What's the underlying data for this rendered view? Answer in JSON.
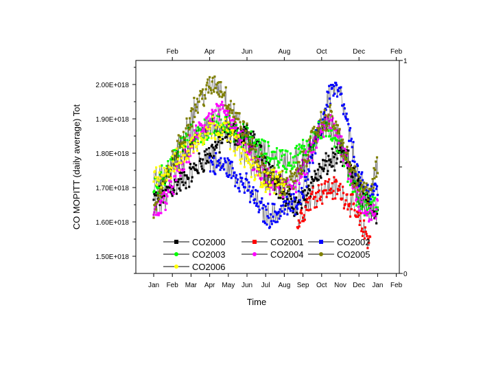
{
  "chart_data": {
    "type": "line",
    "title": "",
    "xlabel": "Time",
    "ylabel": "CO  MOPITT (daily average) Tot",
    "ylim": [
      1.45e+18,
      2.07e+18
    ],
    "y_ticks": [
      "1.50E+018",
      "1.60E+018",
      "1.70E+018",
      "1.80E+018",
      "1.90E+018",
      "2.00E+018"
    ],
    "y_tick_values": [
      1.5e+18,
      1.6e+18,
      1.7e+18,
      1.8e+18,
      1.9e+18,
      2e+18
    ],
    "x_ticks_bottom": [
      "Jan",
      "Feb",
      "Mar",
      "Apr",
      "May",
      "Jun",
      "Jul",
      "Aug",
      "Sep",
      "Oct",
      "Nov",
      "Dec",
      "Jan",
      "Feb"
    ],
    "x_ticks_top": [
      "Feb",
      "Apr",
      "Jun",
      "Aug",
      "Oct",
      "Dec",
      "Feb"
    ],
    "y_ticks_right": [
      "0",
      "1"
    ],
    "grid": false,
    "legend_position": "bottom-inside",
    "x_unit": "month (0 = Jan 1)",
    "series": [
      {
        "name": "CO2000",
        "color": "#000000",
        "marker": "square",
        "x": [
          0.0,
          1.0,
          2.0,
          3.0,
          4.0,
          5.0,
          6.0,
          7.0,
          7.8,
          8.5,
          9.0,
          9.5,
          10.0,
          10.5,
          11.0,
          11.5,
          12.0
        ],
        "y": [
          1.66e+18,
          1.7e+18,
          1.74e+18,
          1.8e+18,
          1.86e+18,
          1.85e+18,
          1.78e+18,
          1.67e+18,
          1.64e+18,
          1.72e+18,
          1.75e+18,
          1.78e+18,
          1.79e+18,
          1.77e+18,
          1.7e+18,
          1.64e+18,
          1.63e+18
        ]
      },
      {
        "name": "CO2001",
        "color": "#ff0000",
        "marker": "square",
        "x": [
          7.7,
          8.0,
          8.3,
          8.6,
          9.0,
          9.5,
          10.0,
          10.5,
          11.0,
          11.3,
          11.6
        ],
        "y": [
          1.59e+18,
          1.63e+18,
          1.66e+18,
          1.68e+18,
          1.69e+18,
          1.7e+18,
          1.69e+18,
          1.66e+18,
          1.6e+18,
          1.57e+18,
          1.55e+18
        ]
      },
      {
        "name": "CO2002",
        "color": "#0000ff",
        "marker": "square",
        "x": [
          3.0,
          4.0,
          4.5,
          5.0,
          5.5,
          6.0,
          6.5,
          7.0,
          7.5,
          8.0,
          8.5,
          9.0,
          9.3,
          9.6,
          10.0,
          10.3,
          10.7,
          11.0,
          11.5,
          12.0
        ],
        "y": [
          1.77e+18,
          1.76e+18,
          1.73e+18,
          1.7e+18,
          1.66e+18,
          1.62e+18,
          1.62e+18,
          1.64e+18,
          1.65e+18,
          1.7e+18,
          1.8e+18,
          1.88e+18,
          1.96e+18,
          1.99e+18,
          1.97e+18,
          1.9e+18,
          1.8e+18,
          1.72e+18,
          1.68e+18,
          1.7e+18
        ]
      },
      {
        "name": "CO2003",
        "color": "#00ff00",
        "marker": "circle",
        "x": [
          0.0,
          0.5,
          1.0,
          1.5,
          2.0,
          2.5,
          3.0,
          3.5,
          4.0,
          4.5,
          5.0,
          5.5,
          6.0,
          6.5,
          7.0,
          7.5,
          8.0,
          8.5,
          9.0,
          9.5,
          10.0,
          10.5,
          11.0,
          11.5,
          12.0
        ],
        "y": [
          1.7e+18,
          1.73e+18,
          1.78e+18,
          1.82e+18,
          1.85e+18,
          1.86e+18,
          1.87e+18,
          1.88e+18,
          1.88e+18,
          1.86e+18,
          1.84e+18,
          1.82e+18,
          1.8e+18,
          1.79e+18,
          1.78e+18,
          1.78e+18,
          1.81e+18,
          1.84e+18,
          1.86e+18,
          1.87e+18,
          1.82e+18,
          1.74e+18,
          1.67e+18,
          1.64e+18,
          1.65e+18
        ]
      },
      {
        "name": "CO2004",
        "color": "#ff00ff",
        "marker": "circle",
        "x": [
          0.0,
          0.5,
          1.0,
          1.5,
          2.0,
          2.5,
          3.0,
          3.5,
          4.0,
          4.5,
          5.0,
          5.5,
          6.0,
          6.5,
          7.0,
          7.5,
          8.0,
          8.5,
          9.0,
          9.5,
          10.0,
          10.5,
          11.0,
          11.5,
          12.0
        ],
        "y": [
          1.62e+18,
          1.66e+18,
          1.71e+18,
          1.76e+18,
          1.82e+18,
          1.87e+18,
          1.9e+18,
          1.92e+18,
          1.9e+18,
          1.86e+18,
          1.81e+18,
          1.76e+18,
          1.72e+18,
          1.71e+18,
          1.7e+18,
          1.71e+18,
          1.75e+18,
          1.81e+18,
          1.87e+18,
          1.89e+18,
          1.84e+18,
          1.75e+18,
          1.66e+18,
          1.62e+18,
          1.64e+18
        ]
      },
      {
        "name": "CO2005",
        "color": "#808000",
        "marker": "circle",
        "x": [
          0.0,
          0.5,
          1.0,
          1.5,
          2.0,
          2.5,
          3.0,
          3.3,
          3.6,
          4.0,
          4.5,
          5.0,
          5.5,
          6.0,
          6.5,
          7.0,
          7.5,
          8.0,
          8.5,
          9.0,
          9.5,
          10.0,
          10.5,
          11.0,
          11.5,
          12.0
        ],
        "y": [
          1.64e+18,
          1.7e+18,
          1.77e+18,
          1.84e+18,
          1.91e+18,
          1.96e+18,
          1.99e+18,
          2e+18,
          1.99e+18,
          1.95e+18,
          1.9e+18,
          1.85e+18,
          1.79e+18,
          1.74e+18,
          1.72e+18,
          1.71e+18,
          1.72e+18,
          1.77e+18,
          1.84e+18,
          1.89e+18,
          1.91e+18,
          1.84e+18,
          1.76e+18,
          1.7e+18,
          1.68e+18,
          1.76e+18
        ]
      },
      {
        "name": "CO2006",
        "color": "#ffff00",
        "marker": "circle",
        "x": [
          0.0,
          0.5,
          1.0,
          1.5,
          2.0,
          2.5,
          3.0,
          3.5,
          4.0,
          4.5,
          5.0,
          5.5,
          6.0,
          6.5,
          7.0
        ],
        "y": [
          1.73e+18,
          1.74e+18,
          1.76e+18,
          1.79e+18,
          1.82e+18,
          1.85e+18,
          1.87e+18,
          1.88e+18,
          1.86e+18,
          1.82e+18,
          1.78e+18,
          1.74e+18,
          1.72e+18,
          1.72e+18,
          1.71e+18
        ]
      }
    ]
  }
}
